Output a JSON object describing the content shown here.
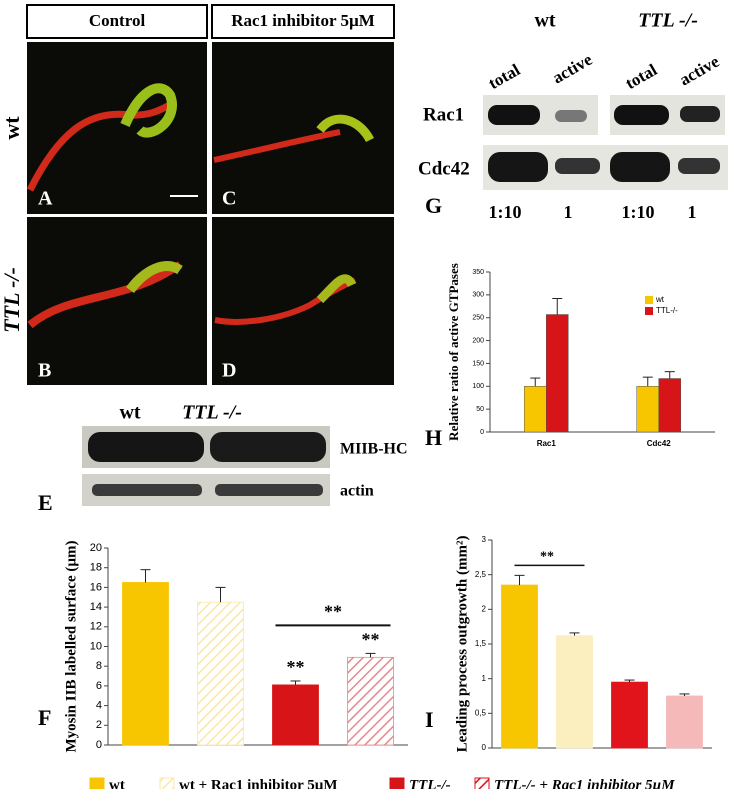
{
  "panels": {
    "headers": [
      "Control",
      "Rac1 inhibitor 5µM"
    ],
    "rows": [
      "wt",
      "TTL -/-"
    ],
    "letters": [
      "A",
      "B",
      "C",
      "D"
    ]
  },
  "blot_e": {
    "columns": [
      "wt",
      "TTL -/-"
    ],
    "rows": [
      "MIIB-HC",
      "actin"
    ],
    "letter": "E"
  },
  "blot_g": {
    "groups": [
      "wt",
      "TTL -/-"
    ],
    "lanes": [
      "total",
      "active",
      "total",
      "active"
    ],
    "rows": [
      "Rac1",
      "Cdc42"
    ],
    "ratios": [
      "1:10",
      "1",
      "1:10",
      "1"
    ],
    "letter": "G"
  },
  "chart_data": [
    {
      "type": "bar",
      "letter": "H",
      "ylabel": "Relative ratio of active GTPases",
      "categories": [
        "Rac1",
        "Cdc42"
      ],
      "series": [
        {
          "name": "wt",
          "color": "#f7c600",
          "values": [
            100,
            100
          ],
          "errors": [
            18,
            20
          ]
        },
        {
          "name": "TTL-/-",
          "color": "#d71418",
          "values": [
            257,
            117
          ],
          "errors": [
            35,
            15
          ]
        }
      ],
      "ylim": [
        0,
        350
      ],
      "yticks": [
        0,
        50,
        100,
        150,
        200,
        250,
        300,
        350
      ],
      "legend": "upper right"
    },
    {
      "type": "bar",
      "letter": "F",
      "ylabel": "Myosin IIB labelled surface (µm)",
      "categories": [
        null,
        null,
        null,
        null
      ],
      "values": [
        16.5,
        14.5,
        6.1,
        8.9
      ],
      "errors": [
        1.3,
        1.5,
        0.4,
        0.4
      ],
      "colors": [
        "#f7c600",
        "#fbe7a6",
        "#d71418",
        "#e8888a"
      ],
      "hatched": [
        false,
        true,
        false,
        true
      ],
      "annotations": [
        "**",
        "**",
        "**"
      ],
      "ylim": [
        0,
        20
      ],
      "yticks": [
        0,
        2,
        4,
        6,
        8,
        10,
        12,
        14,
        16,
        18,
        20
      ]
    },
    {
      "type": "bar",
      "letter": "I",
      "ylabel": "Leading process outgrowth (mm²)",
      "categories": [
        null,
        null,
        null,
        null
      ],
      "values": [
        2.35,
        1.62,
        0.95,
        0.75
      ],
      "errors": [
        0.14,
        0.04,
        0.03,
        0.03
      ],
      "colors": [
        "#f7c600",
        "#fbefbf",
        "#e0141a",
        "#f6b9b9"
      ],
      "hatched": [
        false,
        false,
        false,
        false
      ],
      "annotations": [
        "**"
      ],
      "ylim": [
        0,
        3
      ],
      "yticks": [
        0,
        {
          "value": 0.5,
          "label": "0,5"
        },
        1,
        {
          "value": 1.5,
          "label": "1,5"
        },
        2,
        {
          "value": 2.5,
          "label": "2,5"
        },
        3
      ]
    }
  ],
  "legend": [
    {
      "name": "wt",
      "color": "#f7c600",
      "hatched": false
    },
    {
      "name": "wt + Rac1 inhibitor 5µM",
      "color": "#fbe7a6",
      "hatched": true
    },
    {
      "name": "TTL-/-",
      "color": "#d71418",
      "hatched": false
    },
    {
      "name": "TTL-/- + Rac1 inhibitor 5µM",
      "color": "#d71418",
      "hatched": true
    }
  ]
}
